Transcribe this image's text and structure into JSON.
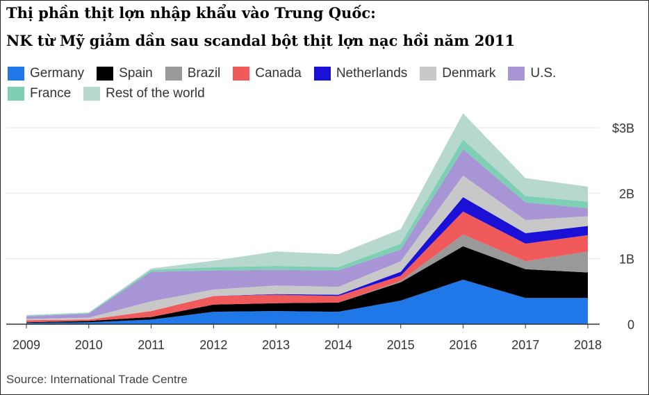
{
  "title_line1": "Thị phần thịt lợn nhập khẩu vào Trung Quốc:",
  "title_line2": "NK từ Mỹ giảm dần sau scandal bột thịt lợn nạc hồi năm 2011",
  "source": "Source: International Trade Centre",
  "chart_data": {
    "type": "area",
    "stacked": true,
    "x": [
      "2009",
      "2010",
      "2011",
      "2012",
      "2013",
      "2014",
      "2015",
      "2016",
      "2017",
      "2018"
    ],
    "y_ticks": [
      "0",
      "1B",
      "2B",
      "$3B"
    ],
    "ylim": [
      0,
      3.2
    ],
    "y_axis_position": "right",
    "grid": true,
    "legend_position": "top-left",
    "series": [
      {
        "name": "Germany",
        "color": "#1f77e8",
        "values": [
          0.02,
          0.03,
          0.07,
          0.19,
          0.2,
          0.19,
          0.36,
          0.68,
          0.4,
          0.4
        ]
      },
      {
        "name": "Spain",
        "color": "#000000",
        "values": [
          0.01,
          0.02,
          0.04,
          0.11,
          0.12,
          0.14,
          0.28,
          0.51,
          0.44,
          0.39
        ]
      },
      {
        "name": "Brazil",
        "color": "#999999",
        "values": [
          0.0,
          0.0,
          0.0,
          0.0,
          0.0,
          0.0,
          0.02,
          0.18,
          0.12,
          0.32
        ]
      },
      {
        "name": "Canada",
        "color": "#f15a5a",
        "values": [
          0.03,
          0.02,
          0.09,
          0.13,
          0.13,
          0.1,
          0.08,
          0.35,
          0.27,
          0.25
        ]
      },
      {
        "name": "Netherlands",
        "color": "#1a10d6",
        "values": [
          0.0,
          0.0,
          0.0,
          0.0,
          0.01,
          0.02,
          0.06,
          0.22,
          0.16,
          0.14
        ]
      },
      {
        "name": "Denmark",
        "color": "#c8c8c8",
        "values": [
          0.02,
          0.03,
          0.15,
          0.1,
          0.13,
          0.12,
          0.16,
          0.33,
          0.2,
          0.15
        ]
      },
      {
        "name": "U.S.",
        "color": "#a795d6",
        "values": [
          0.04,
          0.06,
          0.45,
          0.29,
          0.24,
          0.25,
          0.18,
          0.4,
          0.27,
          0.12
        ]
      },
      {
        "name": "France",
        "color": "#7fcfb5",
        "values": [
          0.01,
          0.01,
          0.03,
          0.05,
          0.06,
          0.05,
          0.09,
          0.15,
          0.1,
          0.1
        ]
      },
      {
        "name": "Rest of the world",
        "color": "#b7d8cf",
        "values": [
          0.01,
          0.01,
          0.02,
          0.1,
          0.22,
          0.2,
          0.22,
          0.4,
          0.27,
          0.23
        ]
      }
    ]
  }
}
